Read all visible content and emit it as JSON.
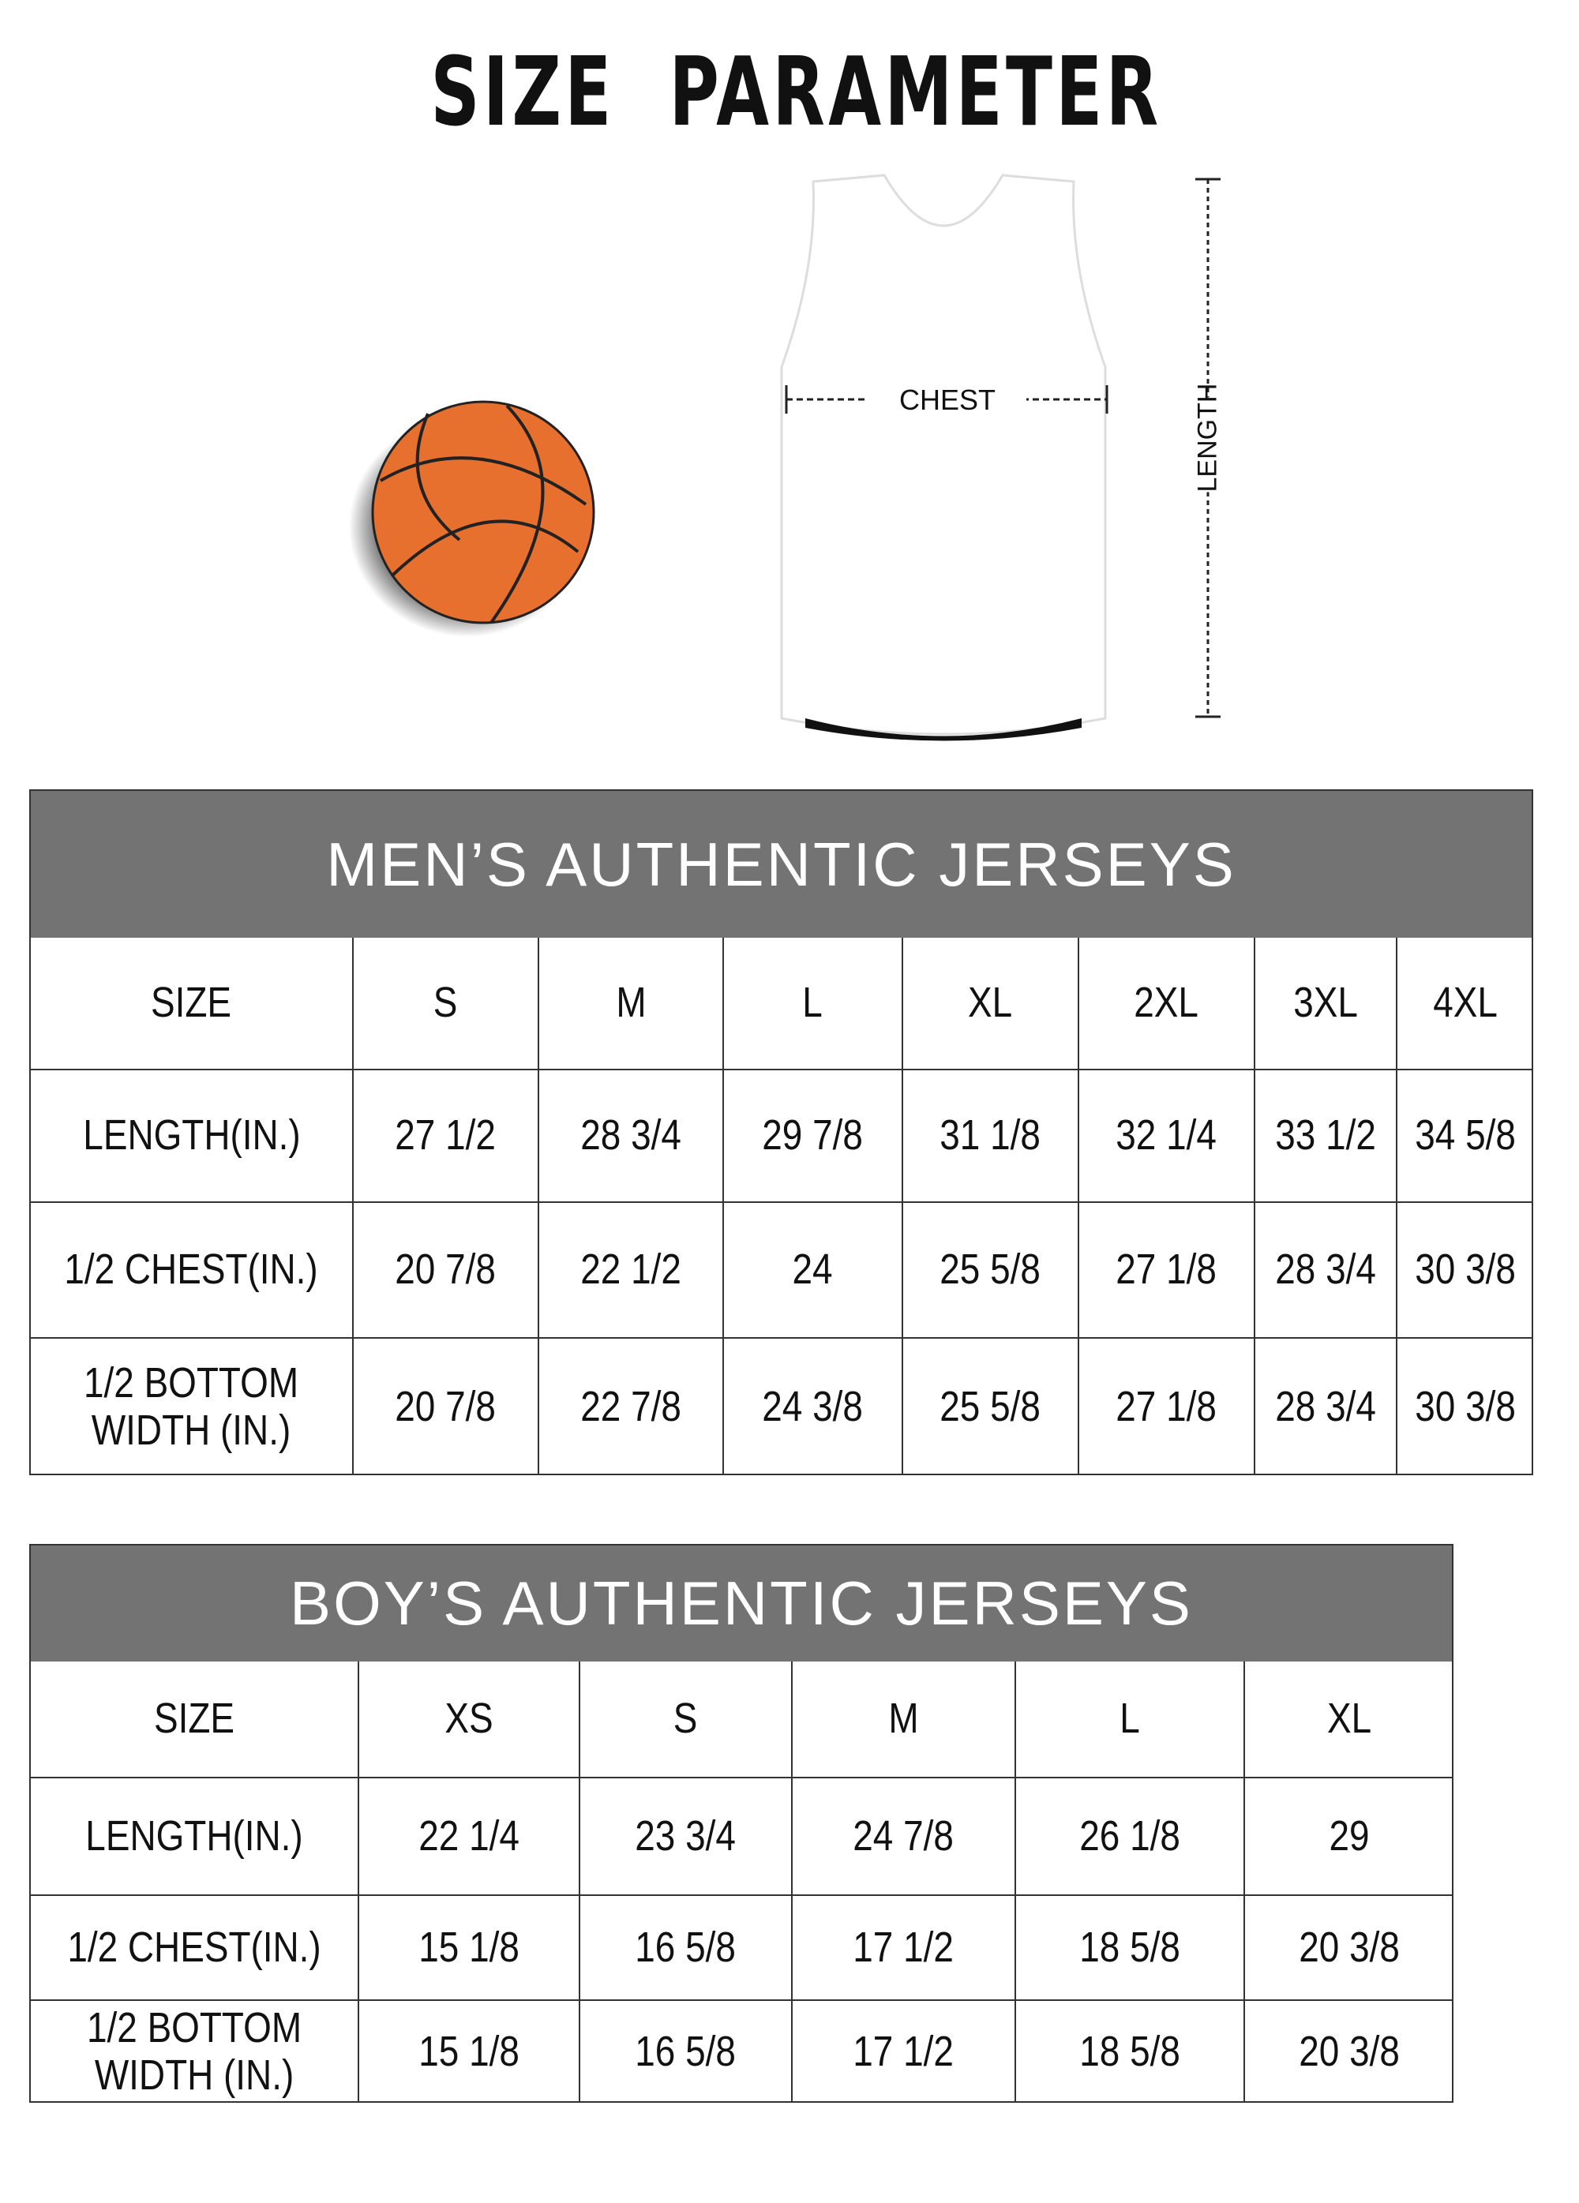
{
  "title": "SIZE  PARAMETER",
  "diagram": {
    "chest_label": "CHEST",
    "length_label": "LENGTH"
  },
  "colors": {
    "header_bg": "#737373",
    "ball": "#E8702E"
  },
  "mens": {
    "heading": "MEN’S AUTHENTIC JERSEYS",
    "columns": [
      "SIZE",
      "S",
      "M",
      "L",
      "XL",
      "2XL",
      "3XL",
      "4XL"
    ],
    "rows": [
      [
        "LENGTH(IN.)",
        "27  1/2",
        "28  3/4",
        "29  7/8",
        "31  1/8",
        "32  1/4",
        "33  1/2",
        "34  5/8"
      ],
      [
        "1/2 CHEST(IN.)",
        "20  7/8",
        "22  1/2",
        "24",
        "25  5/8",
        "27  1/8",
        "28  3/4",
        "30  3/8"
      ],
      [
        "1/2 BOTTOM\nWIDTH  (IN.)",
        "20  7/8",
        "22  7/8",
        "24  3/8",
        "25  5/8",
        "27  1/8",
        "28  3/4",
        "30  3/8"
      ]
    ]
  },
  "boys": {
    "heading": "BOY’S AUTHENTIC JERSEYS",
    "columns": [
      "SIZE",
      "XS",
      "S",
      "M",
      "L",
      "XL"
    ],
    "rows": [
      [
        "LENGTH(IN.)",
        "22  1/4",
        "23  3/4",
        "24  7/8",
        "26  1/8",
        "29"
      ],
      [
        "1/2 CHEST(IN.)",
        "15  1/8",
        "16  5/8",
        "17  1/2",
        "18  5/8",
        "20  3/8"
      ],
      [
        "1/2 BOTTOM\nWIDTH  (IN.)",
        "15  1/8",
        "16  5/8",
        "17  1/2",
        "18  5/8",
        "20  3/8"
      ]
    ]
  }
}
